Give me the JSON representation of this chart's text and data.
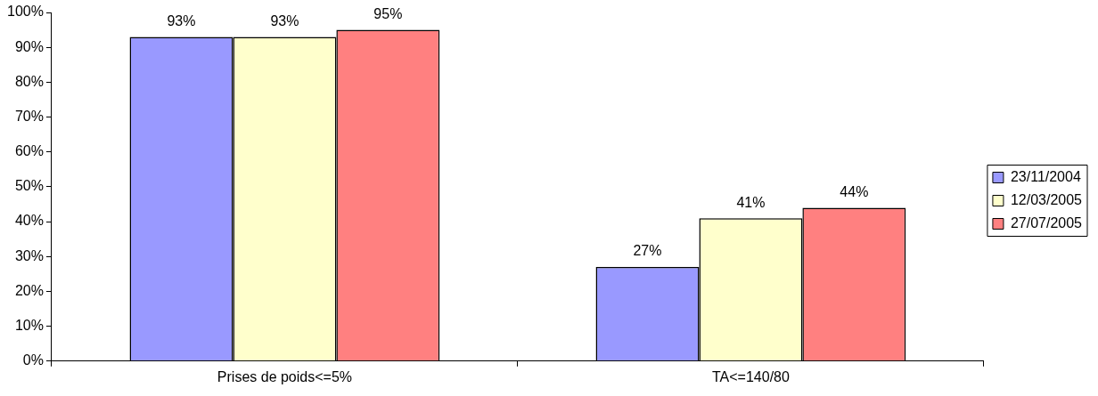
{
  "chart_data": {
    "type": "bar",
    "categories": [
      "Prises de poids<=5%",
      "TA<=140/80"
    ],
    "series": [
      {
        "name": "23/11/2004",
        "color": "#9999ff",
        "values": [
          93,
          27
        ],
        "value_labels": [
          "93%",
          "27%"
        ]
      },
      {
        "name": "12/03/2005",
        "color": "#ffffcc",
        "values": [
          93,
          41
        ],
        "value_labels": [
          "93%",
          "41%"
        ]
      },
      {
        "name": "27/07/2005",
        "color": "#ff8080",
        "values": [
          95,
          44
        ],
        "value_labels": [
          "95%",
          "44%"
        ]
      }
    ],
    "ylim": [
      0,
      100
    ],
    "yticks": [
      {
        "value": 0,
        "label": "0%"
      },
      {
        "value": 10,
        "label": "10%"
      },
      {
        "value": 20,
        "label": "20%"
      },
      {
        "value": 30,
        "label": "30%"
      },
      {
        "value": 40,
        "label": "40%"
      },
      {
        "value": 50,
        "label": "50%"
      },
      {
        "value": 60,
        "label": "60%"
      },
      {
        "value": 70,
        "label": "70%"
      },
      {
        "value": 80,
        "label": "80%"
      },
      {
        "value": 90,
        "label": "90%"
      },
      {
        "value": 100,
        "label": "100%"
      }
    ],
    "grid": false,
    "legend": "right"
  }
}
